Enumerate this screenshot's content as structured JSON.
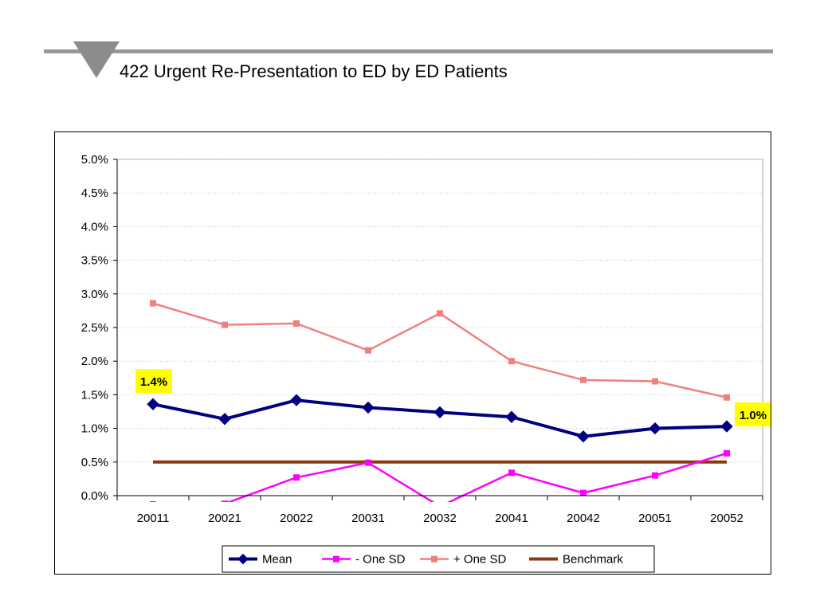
{
  "title": "422 Urgent Re-Presentation to ED by ED Patients",
  "chart_data": {
    "type": "line",
    "categories": [
      "20011",
      "20021",
      "20022",
      "20031",
      "20032",
      "20041",
      "20042",
      "20051",
      "20052"
    ],
    "ylim": [
      0,
      0.05
    ],
    "yticks": [
      0,
      0.005,
      0.01,
      0.015,
      0.02,
      0.025,
      0.03,
      0.035,
      0.04,
      0.045,
      0.05
    ],
    "ytick_labels": [
      "0.0%",
      "0.5%",
      "1.0%",
      "1.5%",
      "2.0%",
      "2.5%",
      "3.0%",
      "3.5%",
      "4.0%",
      "4.5%",
      "5.0%"
    ],
    "grid": true,
    "legend_position": "bottom",
    "series": [
      {
        "name": "Mean",
        "color": "#000080",
        "marker": "diamond",
        "values": [
          0.0136,
          0.0114,
          0.0142,
          0.0131,
          0.0124,
          0.0117,
          0.0088,
          0.01,
          0.0103
        ]
      },
      {
        "name": "- One SD",
        "color": "#ff00ff",
        "marker": "square",
        "values": [
          -0.0013,
          -0.0012,
          0.0027,
          0.0049,
          -0.0016,
          0.0034,
          0.0004,
          0.003,
          0.0063
        ]
      },
      {
        "name": "+ One SD",
        "color": "#f08080",
        "marker": "square",
        "values": [
          0.0286,
          0.0254,
          0.0256,
          0.0216,
          0.0271,
          0.02,
          0.0172,
          0.017,
          0.0146
        ]
      },
      {
        "name": "Benchmark",
        "color": "#8b3a0f",
        "marker": "none",
        "values": [
          0.005,
          0.005,
          0.005,
          0.005,
          0.005,
          0.005,
          0.005,
          0.005,
          0.005
        ]
      }
    ],
    "annotations": [
      {
        "text": "1.4%",
        "series": "Mean",
        "index": 0,
        "background": "#ffff00"
      },
      {
        "text": "1.0%",
        "series": "Mean",
        "index": 8,
        "background": "#ffff00"
      }
    ]
  }
}
